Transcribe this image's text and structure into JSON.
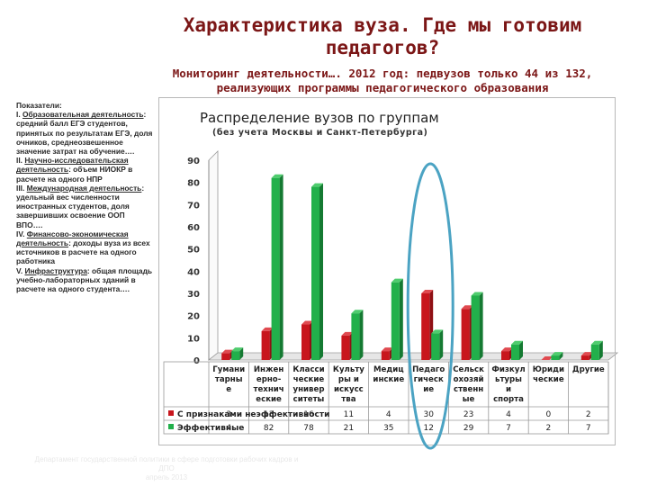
{
  "slide": {
    "title_line1": "Характеристика вуза. Где мы готовим",
    "title_line2": "педагогов?",
    "subtitle_line1": "Мониторинг деятельности…. 2012 год: педвузов только 44 из 132,",
    "subtitle_line2": "реализующих программы педагогического образования"
  },
  "left_panel": [
    {
      "text": "Показатели:",
      "u": false
    },
    {
      "text": "I. ",
      "u": false,
      "extra": "Образовательная деятельность",
      "extra_u": true,
      "tail": ": средний балл ЕГЭ студентов, принятых по результатам ЕГЭ, доля очников, среднеозвешенное значение затрат на обучение…."
    },
    {
      "text": "II. ",
      "u": false,
      "extra": "Научно-исследовательская деятельность",
      "extra_u": true,
      "tail": ": объем НИОКР в расчете на одного НПР"
    },
    {
      "text": "III. ",
      "u": false,
      "extra": "Международная деятельность",
      "extra_u": true,
      "tail": ": удельный вес численности иностранных студентов, доля завершивших освоение ООП ВПО…."
    },
    {
      "text": "IV. ",
      "u": false,
      "extra": "Финансово-экономическая деятельность",
      "extra_u": true,
      "tail": ": доходы вуза из всех источников в расчете на одного работника"
    },
    {
      "text": "V. ",
      "u": false,
      "extra": "Инфраструктура",
      "extra_u": true,
      "tail": ": общая площадь учебно-лабораторных зданий в расчете на одного студента…."
    }
  ],
  "footer": {
    "line1": "Департамент государственной политики в сфере подготовки рабочих кадров и ДПО",
    "line2": "апрель 2013"
  },
  "chart_data": {
    "type": "bar",
    "title": "Распределение вузов по группам",
    "subtitle": "(без учета Москвы и Санкт-Петербурга)",
    "ylim": [
      0,
      90
    ],
    "yticks": [
      0,
      10,
      20,
      30,
      40,
      50,
      60,
      70,
      80,
      90
    ],
    "categories": [
      [
        "Гумани",
        "тарны",
        "е"
      ],
      [
        "Инжен",
        "ерно-",
        "технич",
        "еские"
      ],
      [
        "Класси",
        "ческие",
        "универ",
        "ситеты"
      ],
      [
        "Культу",
        "ры и",
        "искусс",
        "тва"
      ],
      [
        "Медиц",
        "инские"
      ],
      [
        "Педаго",
        "гическ",
        "ие"
      ],
      [
        "Сельск",
        "охозяй",
        "ственн",
        "ые"
      ],
      [
        "Физкул",
        "ьтуры",
        "и",
        "спорта"
      ],
      [
        "Юриди",
        "ческие"
      ],
      [
        "Другие"
      ]
    ],
    "series": [
      {
        "name": "С признаками неэффективности",
        "color": "#c8161d",
        "values": [
          3,
          13,
          16,
          11,
          4,
          30,
          23,
          4,
          0,
          2
        ]
      },
      {
        "name": "Эффективные",
        "color": "#22b04b",
        "values": [
          4,
          82,
          78,
          21,
          35,
          12,
          29,
          7,
          2,
          7
        ]
      }
    ],
    "legend": "bottom-table",
    "grid": false,
    "highlight": {
      "category_index": 5,
      "shape": "ellipse",
      "color": "#4ba3c3"
    }
  }
}
